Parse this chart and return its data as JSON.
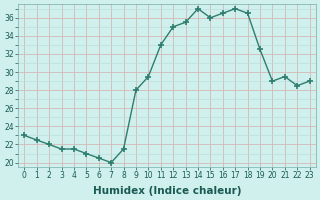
{
  "x": [
    0,
    1,
    2,
    3,
    4,
    5,
    6,
    7,
    8,
    9,
    10,
    11,
    12,
    13,
    14,
    15,
    16,
    17,
    18,
    19,
    20,
    21,
    22,
    23
  ],
  "y": [
    23.0,
    22.5,
    22.0,
    21.5,
    21.5,
    21.0,
    20.5,
    20.0,
    21.5,
    28.0,
    29.5,
    33.0,
    35.0,
    35.5,
    37.0,
    36.0,
    36.5,
    37.0,
    36.5,
    32.5,
    29.0,
    29.5,
    28.5,
    29.0
  ],
  "line_color": "#2e7d6e",
  "bg_color": "#cff0ec",
  "grid_color_major": "#d4b8b8",
  "grid_color_minor": "#bcdedd",
  "xlabel": "Humidex (Indice chaleur)",
  "ylim": [
    19.5,
    37.5
  ],
  "yticks": [
    20,
    22,
    24,
    26,
    28,
    30,
    32,
    34,
    36
  ],
  "xticks": [
    0,
    1,
    2,
    3,
    4,
    5,
    6,
    7,
    8,
    9,
    10,
    11,
    12,
    13,
    14,
    15,
    16,
    17,
    18,
    19,
    20,
    21,
    22,
    23
  ],
  "xtick_labels": [
    "0",
    "1",
    "2",
    "3",
    "4",
    "5",
    "6",
    "7",
    "8",
    "9",
    "10",
    "11",
    "12",
    "13",
    "14",
    "15",
    "16",
    "17",
    "18",
    "19",
    "20",
    "21",
    "22",
    "23"
  ],
  "marker": "+",
  "markersize": 4,
  "linewidth": 1.0,
  "tick_fontsize": 5.5,
  "xlabel_fontsize": 7.5
}
